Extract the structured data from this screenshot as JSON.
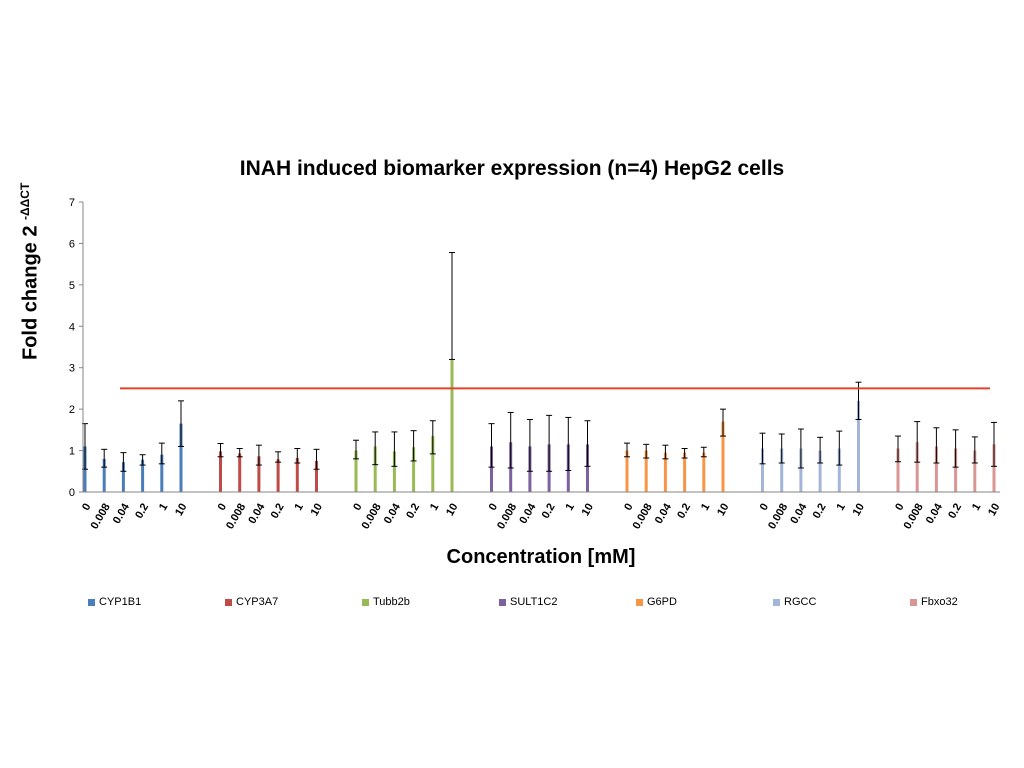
{
  "chart_data": {
    "type": "bar",
    "title": "INAH induced biomarker expression (n=4) HepG2 cells",
    "xlabel": "Concentration [mM]",
    "ylabel_main": "Fold change 2",
    "ylabel_sup": "-ΔΔCT",
    "ylim": [
      0,
      7
    ],
    "yticks": [
      0,
      1,
      2,
      3,
      4,
      5,
      6,
      7
    ],
    "categories": [
      "0",
      "0.008",
      "0.04",
      "0.2",
      "1",
      "10"
    ],
    "threshold": {
      "value": 2.5,
      "color": "#e0442c"
    },
    "legend_position": "bottom",
    "series": [
      {
        "name": "CYP1B1",
        "color": "#4a7ebb",
        "values": [
          1.1,
          0.8,
          0.72,
          0.78,
          0.9,
          1.65
        ],
        "err_low": [
          0.55,
          0.6,
          0.5,
          0.65,
          0.68,
          1.1
        ],
        "err_high": [
          1.65,
          1.03,
          0.95,
          0.9,
          1.18,
          2.2
        ]
      },
      {
        "name": "CYP3A7",
        "color": "#be4b48",
        "values": [
          0.98,
          0.93,
          0.86,
          0.79,
          0.82,
          0.75
        ],
        "err_low": [
          0.85,
          0.85,
          0.65,
          0.72,
          0.7,
          0.55
        ],
        "err_high": [
          1.17,
          1.05,
          1.13,
          0.97,
          1.05,
          1.03
        ]
      },
      {
        "name": "Tubb2b",
        "color": "#98b954",
        "values": [
          1.0,
          1.1,
          0.98,
          1.08,
          1.35,
          3.2
        ],
        "err_low": [
          0.8,
          0.66,
          0.62,
          0.75,
          0.92,
          3.2
        ],
        "err_high": [
          1.25,
          1.45,
          1.45,
          1.48,
          1.72,
          5.78
        ]
      },
      {
        "name": "SULT1C2",
        "color": "#7d60a0",
        "values": [
          1.1,
          1.2,
          1.1,
          1.15,
          1.15,
          1.15
        ],
        "err_low": [
          0.6,
          0.58,
          0.5,
          0.5,
          0.52,
          0.62
        ],
        "err_high": [
          1.65,
          1.92,
          1.75,
          1.85,
          1.8,
          1.72
        ]
      },
      {
        "name": "G6PD",
        "color": "#f79646",
        "values": [
          1.0,
          1.0,
          0.95,
          0.95,
          0.95,
          1.7
        ],
        "err_low": [
          0.85,
          0.82,
          0.8,
          0.82,
          0.85,
          1.35
        ],
        "err_high": [
          1.18,
          1.15,
          1.13,
          1.05,
          1.08,
          2.0
        ]
      },
      {
        "name": "RGCC",
        "color": "#a3b6d9",
        "values": [
          1.05,
          1.05,
          1.05,
          1.0,
          1.05,
          2.2
        ],
        "err_low": [
          0.68,
          0.7,
          0.58,
          0.7,
          0.65,
          1.75
        ],
        "err_high": [
          1.42,
          1.4,
          1.52,
          1.32,
          1.47,
          2.65
        ]
      },
      {
        "name": "Fbxo32",
        "color": "#d99694",
        "values": [
          1.05,
          1.2,
          1.1,
          1.05,
          1.0,
          1.15
        ],
        "err_low": [
          0.73,
          0.72,
          0.7,
          0.6,
          0.7,
          0.62
        ],
        "err_high": [
          1.35,
          1.7,
          1.55,
          1.5,
          1.33,
          1.68
        ]
      }
    ]
  }
}
